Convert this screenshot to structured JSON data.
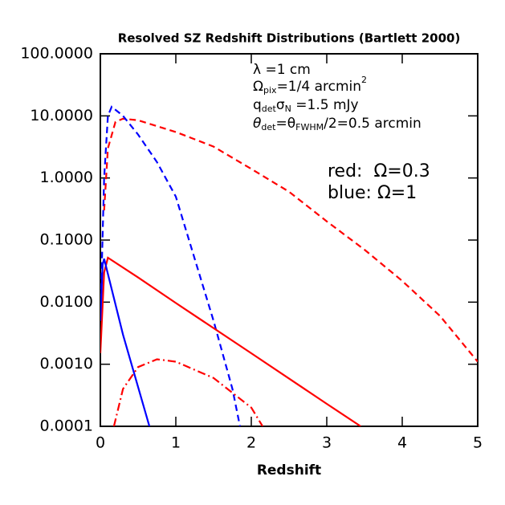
{
  "chart_data": {
    "type": "line",
    "title": "Resolved SZ Redshift Distributions (Bartlett 2000)",
    "x_label": "Redshift",
    "xlim": [
      0,
      5
    ],
    "xticks": [
      0,
      1,
      2,
      3,
      4,
      5
    ],
    "ylim": [
      0.0001,
      100
    ],
    "log_y": true,
    "yticks": [
      {
        "value": 0.0001,
        "label": "0.0001"
      },
      {
        "value": 0.001,
        "label": "0.0010"
      },
      {
        "value": 0.01,
        "label": "0.0100"
      },
      {
        "value": 0.1,
        "label": "0.1000"
      },
      {
        "value": 1,
        "label": "1.0000"
      },
      {
        "value": 10,
        "label": "10.0000"
      },
      {
        "value": 100,
        "label": "100.0000"
      }
    ],
    "annotations": [
      [
        "λ",
        "",
        "   =1 cm",
        ""
      ],
      [
        "Ω",
        "pix",
        "=1/4 arcmin",
        "2"
      ],
      [
        "q",
        "det",
        "σ",
        "N",
        " =1.5 mJy"
      ],
      [
        "θ",
        "det",
        "=θ",
        "FWHM",
        "/2=0.5 arcmin"
      ]
    ],
    "legend": [
      {
        "text": "red:  Ω=0.3",
        "color": "#ff0000"
      },
      {
        "text": "blue: Ω=1",
        "color": "#0000ff"
      }
    ],
    "series": [
      {
        "color": "#ff0000",
        "dash": "dashed",
        "x": [
          0.05,
          0.1,
          0.2,
          0.3,
          0.5,
          1,
          1.5,
          2,
          2.5,
          3,
          3.5,
          4,
          4.5,
          5
        ],
        "values": [
          0.3,
          3,
          8,
          9,
          8.5,
          5.5,
          3.2,
          1.4,
          0.6,
          0.2,
          0.07,
          0.022,
          0.006,
          0.0011
        ]
      },
      {
        "color": "#0000ff",
        "dash": "dashed",
        "x": [
          0,
          0.05,
          0.1,
          0.15,
          0.3,
          0.5,
          0.75,
          1,
          1.25,
          1.5,
          1.75,
          1.85
        ],
        "values": [
          0.005,
          1,
          10,
          14,
          10,
          5,
          1.8,
          0.5,
          0.05,
          0.005,
          0.0004,
          0.0001
        ]
      },
      {
        "color": "#ff0000",
        "dash": "solid",
        "x": [
          0,
          0.05,
          0.1,
          0.5,
          1,
          2,
          3,
          3.45
        ],
        "values": [
          0.0015,
          0.03,
          0.052,
          0.025,
          0.0097,
          0.0015,
          0.00023,
          0.0001
        ]
      },
      {
        "color": "#0000ff",
        "dash": "solid",
        "x": [
          0,
          0.03,
          0.05,
          0.3,
          0.65
        ],
        "values": [
          0.005,
          0.04,
          0.05,
          0.003,
          0.0001
        ]
      },
      {
        "color": "#ff0000",
        "dash": "dashdot",
        "x": [
          0.18,
          0.3,
          0.5,
          0.75,
          1,
          1.5,
          2,
          2.15
        ],
        "values": [
          0.0001,
          0.0004,
          0.0009,
          0.0012,
          0.0011,
          0.0006,
          0.0002,
          0.0001
        ]
      }
    ]
  }
}
